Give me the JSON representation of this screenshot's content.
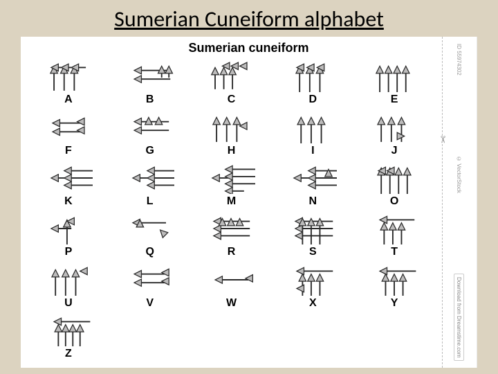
{
  "slide": {
    "title": "Sumerian Cuneiform alphabet",
    "background_color": "#dcd3c0"
  },
  "chart": {
    "title": "Sumerian cuneiform",
    "background_color": "#ffffff",
    "glyph_stroke": "#2a2a2a",
    "glyph_fill": "#bdbcbc",
    "label_font": "Arial",
    "label_fontsize": 16,
    "label_weight": "bold",
    "columns": 5,
    "rows": 6,
    "letters": [
      "A",
      "B",
      "C",
      "D",
      "E",
      "F",
      "G",
      "H",
      "I",
      "J",
      "K",
      "L",
      "M",
      "N",
      "O",
      "P",
      "Q",
      "R",
      "S",
      "T",
      "U",
      "V",
      "W",
      "X",
      "Y",
      "Z"
    ]
  },
  "watermark": {
    "id_text": "ID 55974302",
    "source_text": "© VectorStock",
    "download_text": "Download from",
    "site_text": "Dreamstime.com",
    "scissor_icon": "✂"
  }
}
